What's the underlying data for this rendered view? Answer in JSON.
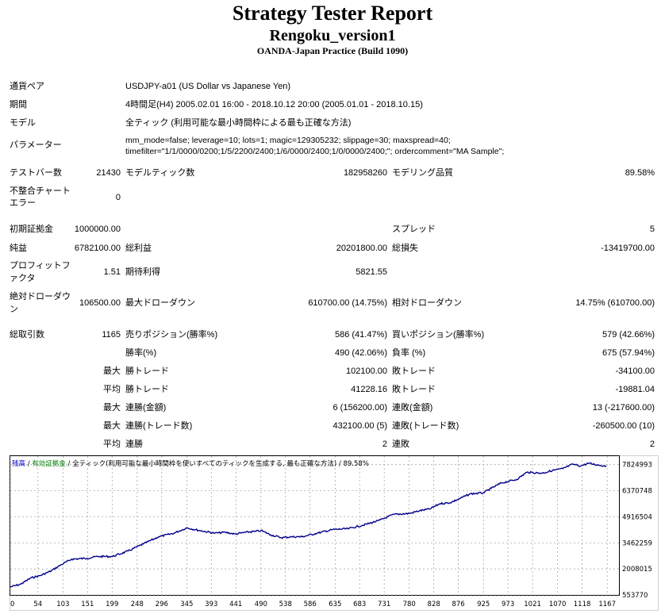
{
  "report": {
    "title": "Strategy Tester Report",
    "ea_name": "Rengoku_version1",
    "server": "OANDA-Japan Practice (Build 1090)"
  },
  "settings": {
    "symbol_label": "通貨ペア",
    "symbol_value": "USDJPY-a01 (US Dollar vs Japanese Yen)",
    "period_label": "期間",
    "period_value": "4時間足(H4) 2005.02.01 16:00 - 2018.10.12 20:00 (2005.01.01 - 2018.10.15)",
    "model_label": "モデル",
    "model_value": "全ティック (利用可能な最小時間枠による最も正確な方法)",
    "params_label": "パラメーター",
    "params_line1": "mm_mode=false; leverage=10; lots=1; magic=129305232; slippage=30; maxspread=40;",
    "params_line2": "timefilter=\"1/1/0000/0200;1/5/2200/2400;1/6/0000/2400;1/0/0000/2400;\"; ordercomment=\"MA Sample\";"
  },
  "quality": {
    "bars_label": "テストバー数",
    "bars_value": "21430",
    "ticks_label": "モデルティック数",
    "ticks_value": "182958260",
    "modeling_label": "モデリング品質",
    "modeling_value": "89.58%",
    "mismatch_label_1": "不整合チャート",
    "mismatch_label_2": "エラー",
    "mismatch_value": "0"
  },
  "summary": {
    "deposit_label": "初期証拠金",
    "deposit_value": "1000000.00",
    "spread_label": "スプレッド",
    "spread_value": "5",
    "net_profit_label": "純益",
    "net_profit_value": "6782100.00",
    "gross_profit_label": "総利益",
    "gross_profit_value": "20201800.00",
    "gross_loss_label": "総損失",
    "gross_loss_value": "-13419700.00",
    "profit_factor_label_1": "プロフィットフ",
    "profit_factor_label_2": "ァクタ",
    "profit_factor_value": "1.51",
    "expected_payoff_label": "期待利得",
    "expected_payoff_value": "5821.55",
    "abs_dd_label_1": "絶対ドローダウ",
    "abs_dd_label_2": "ン",
    "abs_dd_value": "106500.00",
    "max_dd_label": "最大ドローダウン",
    "max_dd_value": "610700.00 (14.75%)",
    "rel_dd_label": "相対ドローダウン",
    "rel_dd_value": "14.75% (610700.00)"
  },
  "trades": {
    "total_label": "総取引数",
    "total_value": "1165",
    "short_label": "売りポジション(勝率%)",
    "short_value": "586 (41.47%)",
    "long_label": "買いポジション(勝率%)",
    "long_value": "579 (42.66%)",
    "profit_trades_label": "勝率(%)",
    "profit_trades_value": "490 (42.06%)",
    "loss_trades_label": "負率 (%)",
    "loss_trades_value": "675 (57.94%)",
    "largest_prefix": "最大",
    "largest_profit_label": "勝トレード",
    "largest_profit_value": "102100.00",
    "largest_loss_label": "敗トレード",
    "largest_loss_value": "-34100.00",
    "average_prefix": "平均",
    "average_profit_label": "勝トレード",
    "average_profit_value": "41228.16",
    "average_loss_label": "敗トレード",
    "average_loss_value": "-19881.04",
    "max_cons_money_prefix": "最大",
    "max_cons_wins_money_label": "連勝(金額)",
    "max_cons_wins_money_value": "6 (156200.00)",
    "max_cons_losses_money_label": "連敗(金額)",
    "max_cons_losses_money_value": "13 (-217600.00)",
    "max_cons_count_prefix": "最大",
    "max_cons_profit_label": "連勝(トレード数)",
    "max_cons_profit_value": "432100.00 (5)",
    "max_cons_loss_label": "連敗(トレード数)",
    "max_cons_loss_value": "-260500.00 (10)",
    "avg_cons_prefix": "平均",
    "avg_cons_wins_label": "連勝",
    "avg_cons_wins_value": "2",
    "avg_cons_losses_label": "連敗",
    "avg_cons_losses_value": "2"
  },
  "chart_data": {
    "type": "line",
    "legend_balance": "残高",
    "legend_sep_1": " / ",
    "legend_equity": "有効証拠金",
    "legend_sep_2": " / ",
    "legend_rest": "全ティック(利用可能な最小時間枠を使いすべてのティックを生成する, 最も正確な方法) / 89.58%",
    "legend_colors": {
      "balance": "#0000cc",
      "equity": "#008000",
      "text": "#000000"
    },
    "line_color": "#00008b",
    "grid": true,
    "xlim": [
      0,
      1190
    ],
    "ylim": [
      553770,
      8300000
    ],
    "x_ticks": [
      0,
      54,
      103,
      151,
      199,
      248,
      296,
      345,
      393,
      441,
      490,
      538,
      586,
      635,
      683,
      731,
      780,
      828,
      876,
      925,
      973,
      1021,
      1070,
      1118,
      1167
    ],
    "y_ticks": [
      553770,
      2008015,
      3462259,
      4916504,
      6370748,
      7824993
    ],
    "series": [
      {
        "x": [
          0,
          20,
          40,
          60,
          80,
          100,
          120,
          150,
          170,
          200,
          230,
          260,
          290,
          320,
          345,
          370,
          400,
          420,
          440,
          460,
          480,
          490,
          510,
          530,
          550,
          570,
          600,
          630,
          660,
          690,
          720,
          750,
          780,
          800,
          820,
          840,
          860,
          880,
          900,
          925,
          940,
          960,
          990,
          1010,
          1040,
          1060,
          1080,
          1100,
          1115,
          1130,
          1150,
          1165
        ],
        "y": [
          1000000,
          1150000,
          1500000,
          1650000,
          1900000,
          2250000,
          2550000,
          2600000,
          2700000,
          2700000,
          3000000,
          3400000,
          3800000,
          4000000,
          4300000,
          4150000,
          4000000,
          4050000,
          3950000,
          4050000,
          4100000,
          4150000,
          3900000,
          3750000,
          3800000,
          3800000,
          4000000,
          4200000,
          4250000,
          4450000,
          4700000,
          5050000,
          5100000,
          5250000,
          5350000,
          5650000,
          5700000,
          5950000,
          6200000,
          6250000,
          6500000,
          6800000,
          7000000,
          7400000,
          7350000,
          7500000,
          7600000,
          7850000,
          7750000,
          7900000,
          7800000,
          7750000
        ]
      }
    ]
  }
}
